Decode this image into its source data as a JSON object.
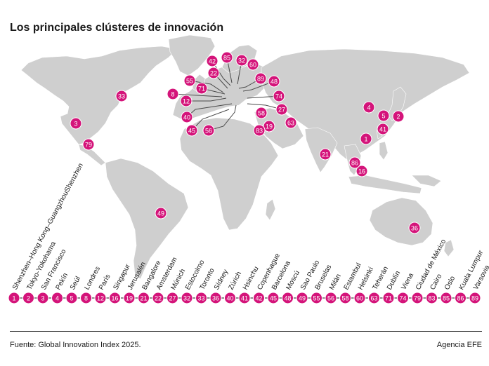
{
  "title": "Los principales clústeres de innovación",
  "source": "Fuente: Global Innovation Index 2025.",
  "credit": "Agencia EFE",
  "colors": {
    "marker": "#d4147a",
    "land": "#cfcfcf"
  },
  "clusters": [
    {
      "rank": "1",
      "name": "Shenzhen–Hong Kong–GuangzhouShenzhen"
    },
    {
      "rank": "2",
      "name": "Tokyo-Yokohama"
    },
    {
      "rank": "3",
      "name": "San Francisco"
    },
    {
      "rank": "4",
      "name": "Pekín"
    },
    {
      "rank": "5",
      "name": "Seúl"
    },
    {
      "rank": "8",
      "name": "Londres"
    },
    {
      "rank": "12",
      "name": "París"
    },
    {
      "rank": "16",
      "name": "Singapur"
    },
    {
      "rank": "19",
      "name": "Jerusalén"
    },
    {
      "rank": "21",
      "name": "Bangalore"
    },
    {
      "rank": "22",
      "name": "Amsterdam"
    },
    {
      "rank": "27",
      "name": "Múnich"
    },
    {
      "rank": "32",
      "name": "Estocolmo"
    },
    {
      "rank": "33",
      "name": "Toronto"
    },
    {
      "rank": "36",
      "name": "Sídney"
    },
    {
      "rank": "40",
      "name": "Zúrich"
    },
    {
      "rank": "41",
      "name": "Hsinchu"
    },
    {
      "rank": "42",
      "name": "Copenhague"
    },
    {
      "rank": "45",
      "name": "Barcelona"
    },
    {
      "rank": "48",
      "name": "Moscú"
    },
    {
      "rank": "49",
      "name": "Sao Paulo"
    },
    {
      "rank": "55",
      "name": "Bruselas"
    },
    {
      "rank": "56",
      "name": "Milán"
    },
    {
      "rank": "58",
      "name": "Estambul"
    },
    {
      "rank": "60",
      "name": "Helsinki"
    },
    {
      "rank": "63",
      "name": "Teherán"
    },
    {
      "rank": "71",
      "name": "Dublín"
    },
    {
      "rank": "74",
      "name": "Viena"
    },
    {
      "rank": "79",
      "name": "Ciudad de México"
    },
    {
      "rank": "83",
      "name": "Cairo"
    },
    {
      "rank": "85",
      "name": "Oslo"
    },
    {
      "rank": "86",
      "name": "Kuala Lumpur"
    },
    {
      "rank": "89",
      "name": "Varsovia"
    }
  ]
}
